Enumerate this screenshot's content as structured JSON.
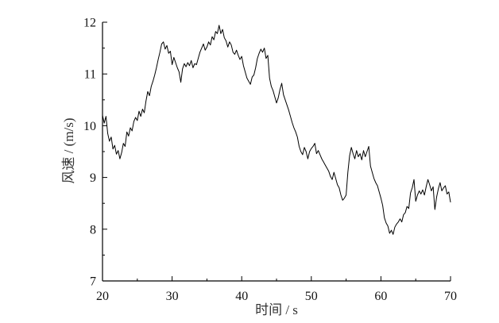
{
  "chart_data": {
    "type": "line",
    "xlabel": "时间 / s",
    "ylabel": "风速 / (m/s)",
    "xlim": [
      20,
      70
    ],
    "ylim": [
      7,
      12
    ],
    "xticks": [
      20,
      30,
      40,
      50,
      60,
      70
    ],
    "yticks": [
      7,
      8,
      9,
      10,
      11,
      12
    ],
    "grid": false,
    "line_color": "#000000",
    "x": [
      20,
      20.25,
      20.5,
      20.75,
      21,
      21.25,
      21.5,
      21.75,
      22,
      22.25,
      22.5,
      22.75,
      23,
      23.25,
      23.5,
      23.75,
      24,
      24.25,
      24.5,
      24.75,
      25,
      25.25,
      25.5,
      25.75,
      26,
      26.25,
      26.5,
      26.75,
      27,
      27.25,
      27.5,
      27.75,
      28,
      28.25,
      28.5,
      28.75,
      29,
      29.25,
      29.5,
      29.75,
      30,
      30.25,
      30.5,
      30.75,
      31,
      31.25,
      31.5,
      31.75,
      32,
      32.25,
      32.5,
      32.75,
      33,
      33.25,
      33.5,
      33.75,
      34,
      34.25,
      34.5,
      34.75,
      35,
      35.25,
      35.5,
      35.75,
      36,
      36.25,
      36.5,
      36.75,
      37,
      37.25,
      37.5,
      37.75,
      38,
      38.25,
      38.5,
      38.75,
      39,
      39.25,
      39.5,
      39.75,
      40,
      40.25,
      40.5,
      40.75,
      41,
      41.25,
      41.5,
      41.75,
      42,
      42.25,
      42.5,
      42.75,
      43,
      43.25,
      43.5,
      43.75,
      44,
      44.25,
      44.5,
      44.75,
      45,
      45.25,
      45.5,
      45.75,
      46,
      46.25,
      46.5,
      46.75,
      47,
      47.25,
      47.5,
      47.75,
      48,
      48.25,
      48.5,
      48.75,
      49,
      49.25,
      49.5,
      49.75,
      50,
      50.25,
      50.5,
      50.75,
      51,
      51.25,
      51.5,
      51.75,
      52,
      52.25,
      52.5,
      52.75,
      53,
      53.25,
      53.5,
      53.75,
      54,
      54.25,
      54.5,
      54.75,
      55,
      55.25,
      55.5,
      55.75,
      56,
      56.25,
      56.5,
      56.75,
      57,
      57.25,
      57.5,
      57.75,
      58,
      58.25,
      58.5,
      58.75,
      59,
      59.25,
      59.5,
      59.75,
      60,
      60.25,
      60.5,
      60.75,
      61,
      61.25,
      61.5,
      61.75,
      62,
      62.25,
      62.5,
      62.75,
      63,
      63.25,
      63.5,
      63.75,
      64,
      64.25,
      64.5,
      64.75,
      65,
      65.25,
      65.5,
      65.75,
      66,
      66.25,
      66.5,
      66.75,
      67,
      67.25,
      67.5,
      67.75,
      68,
      68.25,
      68.5,
      68.75,
      69,
      69.25,
      69.5,
      69.75,
      70
    ],
    "y": [
      10.2,
      10.05,
      10.18,
      9.85,
      9.7,
      9.78,
      9.55,
      9.62,
      9.45,
      9.52,
      9.36,
      9.48,
      9.66,
      9.6,
      9.88,
      9.8,
      9.96,
      9.9,
      10.08,
      10.16,
      10.1,
      10.28,
      10.18,
      10.32,
      10.25,
      10.48,
      10.66,
      10.58,
      10.76,
      10.86,
      10.98,
      11.12,
      11.28,
      11.42,
      11.58,
      11.62,
      11.48,
      11.55,
      11.4,
      11.44,
      11.18,
      11.32,
      11.22,
      11.12,
      11.04,
      10.84,
      11.1,
      11.2,
      11.14,
      11.22,
      11.16,
      11.26,
      11.12,
      11.2,
      11.18,
      11.3,
      11.42,
      11.5,
      11.58,
      11.46,
      11.52,
      11.62,
      11.56,
      11.72,
      11.66,
      11.82,
      11.78,
      11.94,
      11.78,
      11.86,
      11.7,
      11.64,
      11.52,
      11.62,
      11.56,
      11.42,
      11.38,
      11.46,
      11.36,
      11.28,
      11.34,
      11.16,
      11.04,
      10.92,
      10.86,
      10.8,
      10.94,
      10.98,
      11.12,
      11.3,
      11.4,
      11.48,
      11.42,
      11.5,
      11.3,
      11.36,
      10.92,
      10.76,
      10.68,
      10.56,
      10.44,
      10.54,
      10.7,
      10.82,
      10.6,
      10.5,
      10.4,
      10.3,
      10.18,
      10.06,
      9.96,
      9.88,
      9.78,
      9.6,
      9.5,
      9.44,
      9.58,
      9.5,
      9.36,
      9.5,
      9.56,
      9.6,
      9.66,
      9.46,
      9.52,
      9.44,
      9.36,
      9.3,
      9.24,
      9.18,
      9.12,
      9.02,
      8.96,
      9.1,
      8.98,
      8.86,
      8.8,
      8.66,
      8.56,
      8.6,
      8.66,
      9.1,
      9.42,
      9.58,
      9.46,
      9.36,
      9.52,
      9.4,
      9.46,
      9.34,
      9.52,
      9.4,
      9.5,
      9.6,
      9.22,
      9.1,
      8.98,
      8.9,
      8.84,
      8.72,
      8.6,
      8.46,
      8.22,
      8.12,
      8.06,
      7.92,
      7.98,
      7.9,
      8.04,
      8.1,
      8.14,
      8.2,
      8.14,
      8.28,
      8.32,
      8.44,
      8.4,
      8.7,
      8.8,
      8.96,
      8.54,
      8.66,
      8.74,
      8.68,
      8.76,
      8.66,
      8.82,
      8.96,
      8.86,
      8.74,
      8.82,
      8.38,
      8.62,
      8.78,
      8.9,
      8.74,
      8.8,
      8.84,
      8.68,
      8.72,
      8.52
    ]
  }
}
